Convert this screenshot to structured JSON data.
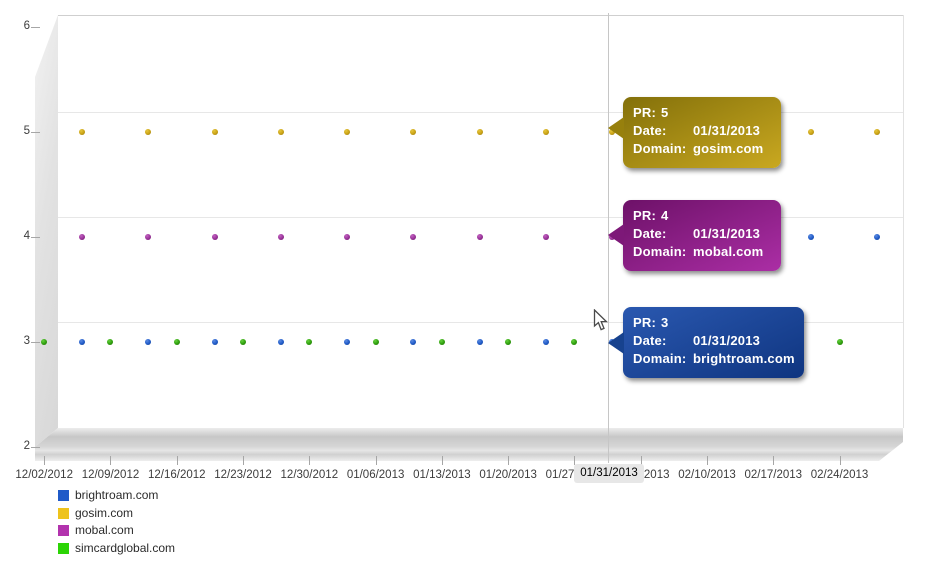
{
  "y_axis": {
    "labels": [
      {
        "text": "6",
        "value": 6
      },
      {
        "text": "5",
        "value": 5
      },
      {
        "text": "4",
        "value": 4
      },
      {
        "text": "3",
        "value": 3
      },
      {
        "text": "2",
        "value": 2
      }
    ]
  },
  "x_axis": {
    "tick_labels": [
      "12/02/2012",
      "12/09/2012",
      "12/16/2012",
      "12/23/2012",
      "12/30/2012",
      "01/06/2013",
      "01/13/2013",
      "01/20/2013",
      "01/27/2013",
      "02/03/2013",
      "02/10/2013",
      "02/17/2013",
      "02/24/2013"
    ],
    "highlight": {
      "label": "01/31/2013"
    }
  },
  "legend": {
    "items": [
      {
        "label": "brightroam.com",
        "color": "#1f5ac8"
      },
      {
        "label": "gosim.com",
        "color": "#eec31c"
      },
      {
        "label": "mobal.com",
        "color": "#b233ad"
      },
      {
        "label": "simcardglobal.com",
        "color": "#2cd405"
      }
    ]
  },
  "tooltips": [
    {
      "rows": [
        {
          "label": "PR:",
          "value": "5"
        },
        {
          "label": "Date:",
          "value": "01/31/2013"
        },
        {
          "label": "Domain:",
          "value": "gosim.com"
        }
      ],
      "color_top": "#83700a",
      "color_bottom": "#c9a820",
      "pointer_color": "#97800d"
    },
    {
      "rows": [
        {
          "label": "PR:",
          "value": "4"
        },
        {
          "label": "Date:",
          "value": "01/31/2013"
        },
        {
          "label": "Domain:",
          "value": "mobal.com"
        }
      ],
      "color_top": "#6d1168",
      "color_bottom": "#ab2ea5",
      "pointer_color": "#7d1878"
    },
    {
      "rows": [
        {
          "label": "PR:",
          "value": "3"
        },
        {
          "label": "Date:",
          "value": "01/31/2013"
        },
        {
          "label": "Domain:",
          "value": "brightroam.com"
        }
      ],
      "color_top": "#2a58b0",
      "color_bottom": "#0f3580",
      "pointer_color": "#17428e"
    }
  ],
  "chart_data": {
    "type": "scatter",
    "title": "",
    "ylim": [
      2,
      6
    ],
    "y_ticks": [
      2,
      3,
      4,
      5,
      6
    ],
    "x_start_date": "12/02/2012",
    "x_interval": "weekly",
    "x_tick_dates": [
      "12/02/2012",
      "12/09/2012",
      "12/16/2012",
      "12/23/2012",
      "12/30/2012",
      "01/06/2013",
      "01/13/2013",
      "01/20/2013",
      "01/27/2013",
      "02/03/2013",
      "02/10/2013",
      "02/17/2013",
      "02/24/2013"
    ],
    "highlighted_date": "01/31/2013",
    "highlighted_values": [
      {
        "domain": "gosim.com",
        "pr": 5
      },
      {
        "domain": "mobal.com",
        "pr": 4
      },
      {
        "domain": "brightroam.com",
        "pr": 3
      }
    ],
    "legend_position": "bottom-left",
    "grid": "horizontal",
    "series": [
      {
        "name": "brightroam.com",
        "color": "#1f5ac8",
        "dot_light": "#5b8ae0",
        "dot_dark": "#123c7e",
        "week_offset_days": 4,
        "points": [
          {
            "week": 0,
            "pr": 3
          },
          {
            "week": 1,
            "pr": 3
          },
          {
            "week": 2,
            "pr": 3
          },
          {
            "week": 3,
            "pr": 3
          },
          {
            "week": 4,
            "pr": 3
          },
          {
            "week": 5,
            "pr": 3
          },
          {
            "week": 6,
            "pr": 3
          },
          {
            "week": 7,
            "pr": 3
          },
          {
            "week": 8,
            "pr": 3
          },
          {
            "week": 9,
            "pr": 3
          },
          {
            "week": 10,
            "pr": 3
          },
          {
            "week": 11,
            "pr": 4
          },
          {
            "week": 12,
            "pr": 4
          }
        ]
      },
      {
        "name": "gosim.com",
        "color": "#c9a215",
        "dot_light": "#e6c63c",
        "dot_dark": "#8a6d0a",
        "week_offset_days": 4,
        "points": [
          {
            "week": 0,
            "pr": 5
          },
          {
            "week": 1,
            "pr": 5
          },
          {
            "week": 2,
            "pr": 5
          },
          {
            "week": 3,
            "pr": 5
          },
          {
            "week": 4,
            "pr": 5
          },
          {
            "week": 5,
            "pr": 5
          },
          {
            "week": 6,
            "pr": 5
          },
          {
            "week": 7,
            "pr": 5
          },
          {
            "week": 8,
            "pr": 5
          },
          {
            "week": 9,
            "pr": 5
          },
          {
            "week": 10,
            "pr": 5
          },
          {
            "week": 11,
            "pr": 5
          },
          {
            "week": 12,
            "pr": 5
          }
        ]
      },
      {
        "name": "mobal.com",
        "color": "#993399",
        "dot_light": "#c261c0",
        "dot_dark": "#64105f",
        "week_offset_days": 4,
        "points": [
          {
            "week": 0,
            "pr": 4
          },
          {
            "week": 1,
            "pr": 4
          },
          {
            "week": 2,
            "pr": 4
          },
          {
            "week": 3,
            "pr": 4
          },
          {
            "week": 4,
            "pr": 4
          },
          {
            "week": 5,
            "pr": 4
          },
          {
            "week": 6,
            "pr": 4
          },
          {
            "week": 7,
            "pr": 4
          },
          {
            "week": 8,
            "pr": 4
          },
          {
            "week": 9,
            "pr": 4
          },
          {
            "week": 10,
            "pr": 4
          }
        ]
      },
      {
        "name": "simcardglobal.com",
        "color": "#2f9e0e",
        "dot_light": "#64d13c",
        "dot_dark": "#1c6b00",
        "week_offset_days": 0,
        "points": [
          {
            "week": 0,
            "pr": 3
          },
          {
            "week": 1,
            "pr": 3
          },
          {
            "week": 2,
            "pr": 3
          },
          {
            "week": 3,
            "pr": 3
          },
          {
            "week": 4,
            "pr": 3
          },
          {
            "week": 5,
            "pr": 3
          },
          {
            "week": 6,
            "pr": 3
          },
          {
            "week": 7,
            "pr": 3
          },
          {
            "week": 8,
            "pr": 3
          },
          {
            "week": 9,
            "pr": 3
          },
          {
            "week": 10,
            "pr": 3
          },
          {
            "week": 11,
            "pr": 3
          },
          {
            "week": 12,
            "pr": 3
          }
        ]
      }
    ]
  }
}
